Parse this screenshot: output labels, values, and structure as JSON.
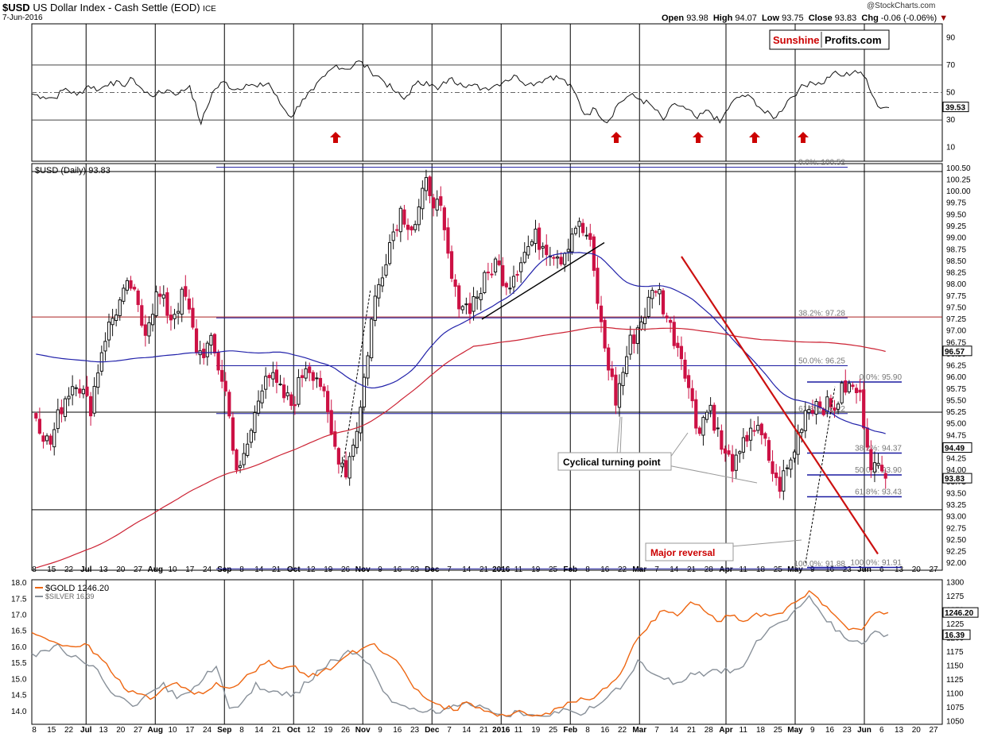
{
  "header": {
    "symbol": "$USD",
    "name": "US Dollar Index - Cash Settle (EOD)",
    "exchange": "ICE",
    "date": "7-Jun-2016",
    "watermark": "@StockCharts.com",
    "ohlc": {
      "open_label": "Open",
      "open": "93.98",
      "high_label": "High",
      "high": "94.07",
      "low_label": "Low",
      "low": "93.75",
      "close_label": "Close",
      "close": "93.83",
      "chg_label": "Chg",
      "chg": "-0.06 (-0.06%)"
    }
  },
  "logo": {
    "part1": "Sunshine",
    "part2": "Profits.com"
  },
  "chart_data": [
    {
      "type": "line",
      "panel": "rsi",
      "ylim": [
        0,
        100
      ],
      "y_ticks": [
        90,
        70,
        50,
        30,
        10
      ],
      "reference_lines": [
        70,
        50,
        30
      ],
      "last_value_badge": "39.53",
      "arrow_markers": [
        {
          "x": "Oct 12",
          "direction": "up"
        },
        {
          "x": "Feb 10",
          "direction": "up"
        },
        {
          "x": "Mar 21",
          "direction": "up"
        },
        {
          "x": "Apr 11",
          "direction": "up"
        },
        {
          "x": "May 2",
          "direction": "up"
        }
      ],
      "series": [
        {
          "values": [
            49,
            47,
            46,
            53,
            48,
            55,
            52,
            58,
            55,
            60,
            50,
            48,
            52,
            49,
            55,
            27,
            50,
            58,
            52,
            56,
            54,
            57,
            42,
            32,
            45,
            52,
            62,
            70,
            67,
            73,
            66,
            60,
            52,
            45,
            56,
            58,
            52,
            60,
            57,
            55,
            53,
            55,
            59,
            62,
            56,
            58,
            62,
            60,
            52,
            34,
            38,
            28,
            42,
            48,
            45,
            40,
            30,
            42,
            38,
            31,
            37,
            28,
            42,
            48,
            45,
            35,
            32,
            44,
            52,
            58,
            56,
            64,
            62,
            66,
            60,
            40,
            39
          ]
        }
      ]
    },
    {
      "type": "candlestick",
      "panel": "price",
      "title": "$USD (Daily) 93.83",
      "ylim": [
        91.85,
        100.6
      ],
      "y_ticks": [
        "100.50",
        "100.25",
        "100.00",
        "99.75",
        "99.50",
        "99.25",
        "99.00",
        "98.75",
        "98.50",
        "98.25",
        "98.00",
        "97.75",
        "97.50",
        "97.25",
        "97.00",
        "96.75",
        "96.50",
        "96.25",
        "96.00",
        "95.75",
        "95.50",
        "95.25",
        "95.00",
        "94.75",
        "94.50",
        "94.25",
        "94.00",
        "93.75",
        "93.50",
        "93.25",
        "93.00",
        "92.75",
        "92.50",
        "92.25",
        "92.00"
      ],
      "close_path": [
        95.2,
        94.5,
        95.5,
        96.0,
        95.3,
        96.8,
        97.5,
        98.0,
        97.0,
        97.8,
        97.3,
        97.8,
        96.5,
        96.7,
        95.8,
        93.8,
        94.9,
        96.2,
        95.7,
        95.4,
        96.3,
        96.0,
        94.6,
        94.0,
        95.2,
        97.5,
        98.7,
        99.6,
        99.2,
        100.2,
        99.5,
        97.8,
        97.5,
        97.9,
        98.5,
        98.0,
        98.6,
        99.0,
        98.8,
        98.6,
        99.3,
        99.0,
        96.9,
        95.5,
        96.7,
        97.3,
        98.0,
        97.1,
        96.4,
        94.9,
        95.4,
        94.3,
        94.1,
        95.0,
        94.6,
        93.6,
        94.2,
        95.3,
        95.5,
        95.3,
        95.8,
        95.7,
        94.1,
        93.85
      ],
      "moving_averages": [
        {
          "name": "50-day",
          "color": "#2222aa",
          "last_value_badge": "94.49"
        },
        {
          "name": "200-day",
          "color": "#cc2233",
          "last_value_badge": "96.57"
        }
      ],
      "last_value_badge": "93.83",
      "fibonacci_upper": [
        {
          "label": "0.0%: 100.52",
          "value": 100.52
        },
        {
          "label": "38.2%: 97.28",
          "value": 97.28
        },
        {
          "label": "50.0%: 96.25",
          "value": 96.25
        },
        {
          "label": "61.8%: 95.22",
          "value": 95.22
        },
        {
          "label": "100.0%: 91.88",
          "value": 91.88
        }
      ],
      "fibonacci_lower": [
        {
          "label": "0.0%: 95.90",
          "value": 95.9
        },
        {
          "label": "38.2%: 94.37",
          "value": 94.37
        },
        {
          "label": "50.0%: 93.90",
          "value": 93.9
        },
        {
          "label": "61.8%: 93.43",
          "value": 93.43
        },
        {
          "label": "100.0%: 91.91",
          "value": 91.91
        }
      ],
      "support_resistance_lines": [
        100.43,
        97.3,
        95.25,
        93.15
      ],
      "annotations": [
        {
          "text": "Cyclical turning point",
          "color": "#000000"
        },
        {
          "text": "Major reversal",
          "color": "#cc0000"
        }
      ]
    },
    {
      "type": "line",
      "panel": "metals",
      "left_ylim": [
        13.6,
        18.1
      ],
      "left_ticks": [
        "18.0",
        "17.5",
        "17.0",
        "16.5",
        "16.0",
        "15.5",
        "15.0",
        "14.5",
        "14.0"
      ],
      "right_ylim": [
        1045,
        1305
      ],
      "right_ticks": [
        "1300",
        "1275",
        "1250",
        "1225",
        "1200",
        "1175",
        "1150",
        "1125",
        "1100",
        "1075",
        "1050"
      ],
      "series": [
        {
          "name": "$GOLD 1246.20",
          "color": "#ee6611",
          "last_value_badge": "1246.20",
          "values": [
            1210,
            1200,
            1190,
            1185,
            1190,
            1170,
            1140,
            1110,
            1100,
            1090,
            1110,
            1120,
            1105,
            1100,
            1120,
            1110,
            1125,
            1140,
            1160,
            1145,
            1150,
            1130,
            1140,
            1150,
            1170,
            1180,
            1190,
            1170,
            1150,
            1110,
            1090,
            1080,
            1070,
            1085,
            1075,
            1065,
            1060,
            1070,
            1060,
            1065,
            1075,
            1085,
            1090,
            1100,
            1120,
            1150,
            1200,
            1230,
            1250,
            1240,
            1265,
            1250,
            1230,
            1240,
            1230,
            1245,
            1240,
            1245,
            1265,
            1285,
            1260,
            1240,
            1215,
            1215,
            1245,
            1246
          ]
        },
        {
          "name": "$SILVER 16.39",
          "color": "#889099",
          "last_value_badge": "16.39",
          "values": [
            15.8,
            15.9,
            16.1,
            15.7,
            15.5,
            15.3,
            14.6,
            14.4,
            14.2,
            14.6,
            14.9,
            14.4,
            14.6,
            15.0,
            15.4,
            14.1,
            14.3,
            14.9,
            14.6,
            14.5,
            14.6,
            14.9,
            15.3,
            15.6,
            15.9,
            15.7,
            15.2,
            14.5,
            14.2,
            14.1,
            14.0,
            13.95,
            14.2,
            14.3,
            14.2,
            13.95,
            13.85,
            14.0,
            13.9,
            13.85,
            13.95,
            14.0,
            13.95,
            14.2,
            14.6,
            14.9,
            15.6,
            15.2,
            15.0,
            14.9,
            15.2,
            15.1,
            15.3,
            15.2,
            15.4,
            16.2,
            16.6,
            16.8,
            17.2,
            17.6,
            17.0,
            16.5,
            16.2,
            16.1,
            16.5,
            16.39
          ]
        }
      ]
    }
  ],
  "x_axis": {
    "labels": [
      {
        "t": "8",
        "b": false
      },
      {
        "t": "15",
        "b": false
      },
      {
        "t": "22",
        "b": false
      },
      {
        "t": "Jul",
        "b": true
      },
      {
        "t": "13",
        "b": false
      },
      {
        "t": "20",
        "b": false
      },
      {
        "t": "27",
        "b": false
      },
      {
        "t": "Aug",
        "b": true
      },
      {
        "t": "10",
        "b": false
      },
      {
        "t": "17",
        "b": false
      },
      {
        "t": "24",
        "b": false
      },
      {
        "t": "Sep",
        "b": true
      },
      {
        "t": "8",
        "b": false
      },
      {
        "t": "14",
        "b": false
      },
      {
        "t": "21",
        "b": false
      },
      {
        "t": "Oct",
        "b": true
      },
      {
        "t": "12",
        "b": false
      },
      {
        "t": "19",
        "b": false
      },
      {
        "t": "26",
        "b": false
      },
      {
        "t": "Nov",
        "b": true
      },
      {
        "t": "9",
        "b": false
      },
      {
        "t": "16",
        "b": false
      },
      {
        "t": "23",
        "b": false
      },
      {
        "t": "Dec",
        "b": true
      },
      {
        "t": "7",
        "b": false
      },
      {
        "t": "14",
        "b": false
      },
      {
        "t": "21",
        "b": false
      },
      {
        "t": "2016",
        "b": true
      },
      {
        "t": "11",
        "b": false
      },
      {
        "t": "19",
        "b": false
      },
      {
        "t": "25",
        "b": false
      },
      {
        "t": "Feb",
        "b": true
      },
      {
        "t": "8",
        "b": false
      },
      {
        "t": "16",
        "b": false
      },
      {
        "t": "22",
        "b": false
      },
      {
        "t": "Mar",
        "b": true
      },
      {
        "t": "7",
        "b": false
      },
      {
        "t": "14",
        "b": false
      },
      {
        "t": "21",
        "b": false
      },
      {
        "t": "28",
        "b": false
      },
      {
        "t": "Apr",
        "b": true
      },
      {
        "t": "11",
        "b": false
      },
      {
        "t": "18",
        "b": false
      },
      {
        "t": "25",
        "b": false
      },
      {
        "t": "May",
        "b": true
      },
      {
        "t": "9",
        "b": false
      },
      {
        "t": "16",
        "b": false
      },
      {
        "t": "23",
        "b": false
      },
      {
        "t": "Jun",
        "b": true
      },
      {
        "t": "6",
        "b": false
      },
      {
        "t": "13",
        "b": false
      },
      {
        "t": "20",
        "b": false
      },
      {
        "t": "27",
        "b": false
      }
    ]
  },
  "colors": {
    "up": "#111111",
    "down": "#cc1144",
    "fib": "#1a1aa0",
    "trend_red": "#cc1111",
    "rsi": "#111111",
    "grid": "#000000"
  }
}
